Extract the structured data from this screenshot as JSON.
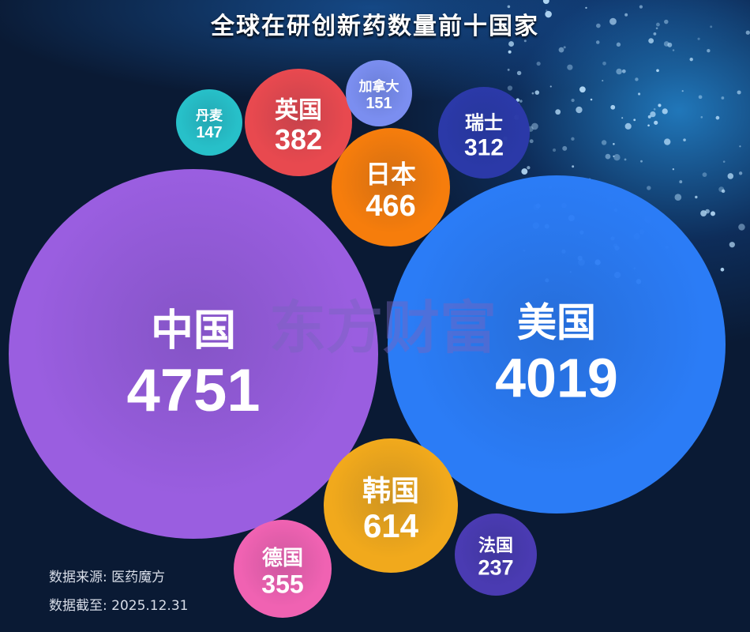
{
  "chart_data": {
    "type": "bubble",
    "title": "全球在研创新药数量前十国家",
    "series": [
      {
        "name": "中国",
        "value": 4751,
        "color": "#9a5ee0"
      },
      {
        "name": "美国",
        "value": 4019,
        "color": "#2b7cf6"
      },
      {
        "name": "韩国",
        "value": 614,
        "color": "#f1a91c"
      },
      {
        "name": "日本",
        "value": 466,
        "color": "#f67d0c"
      },
      {
        "name": "英国",
        "value": 382,
        "color": "#e8494f"
      },
      {
        "name": "德国",
        "value": 355,
        "color": "#f062b2"
      },
      {
        "name": "瑞士",
        "value": 312,
        "color": "#2b39a8"
      },
      {
        "name": "法国",
        "value": 237,
        "color": "#4a3bb2"
      },
      {
        "name": "加拿大",
        "value": 151,
        "color": "#7b8ef0"
      },
      {
        "name": "丹麦",
        "value": 147,
        "color": "#27c0c9"
      }
    ]
  },
  "footer": {
    "source": "数据来源: 医药魔方",
    "cutoff": "数据截至: 2025.12.31"
  },
  "watermark": "东方财富"
}
